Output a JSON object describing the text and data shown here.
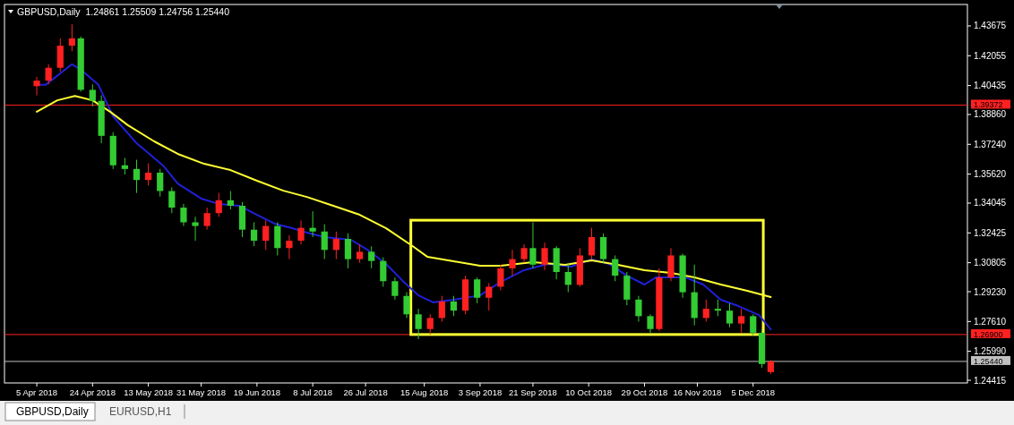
{
  "chart_data": {
    "type": "candlestick",
    "title": "GBPUSD,Daily  1.24861 1.25509 1.24756 1.25440",
    "annotations": [
      "GBPUSD,Daily",
      "EURUSD,H1"
    ],
    "xlim": [
      "2018-03-25",
      "2019-02-16"
    ],
    "xticks": [
      {
        "value": "2018-04-05",
        "label": "5 Apr 2018"
      },
      {
        "value": "2018-04-24",
        "label": "24 Apr 2018"
      },
      {
        "value": "2018-05-13",
        "label": "13 May 2018"
      },
      {
        "value": "2018-05-31",
        "label": "31 May 2018"
      },
      {
        "value": "2018-06-19",
        "label": "19 Jun 2018"
      },
      {
        "value": "2018-07-08",
        "label": "8 Jul 2018"
      },
      {
        "value": "2018-07-26",
        "label": "26 Jul 2018"
      },
      {
        "value": "2018-08-15",
        "label": "15 Aug 2018"
      },
      {
        "value": "2018-09-03",
        "label": "3 Sep 2018"
      },
      {
        "value": "2018-09-21",
        "label": "21 Sep 2018"
      },
      {
        "value": "2018-10-10",
        "label": "10 Oct 2018"
      },
      {
        "value": "2018-10-29",
        "label": "29 Oct 2018"
      },
      {
        "value": "2018-11-16",
        "label": "16 Nov 2018"
      },
      {
        "value": "2018-12-05",
        "label": "5 Dec 2018"
      }
    ],
    "ylim": [
      1.2427,
      1.4484
    ],
    "yticks": [
      1.43675,
      1.42055,
      1.40435,
      {
        "value": 1.3886,
        "label": "1.38860"
      },
      {
        "value": 1.3724,
        "label": "1.37240"
      },
      {
        "value": 1.3562,
        "label": "1.35620"
      },
      1.34045,
      1.32425,
      1.30805,
      {
        "value": 1.2923,
        "label": "1.29230"
      },
      {
        "value": 1.2761,
        "label": "1.27610"
      },
      {
        "value": 1.2599,
        "label": "1.25990"
      },
      1.24415
    ],
    "x": [
      "2018-04-05",
      "2018-04-09",
      "2018-04-13",
      "2018-04-17",
      "2018-04-20",
      "2018-04-24",
      "2018-04-27",
      "2018-05-01",
      "2018-05-05",
      "2018-05-09",
      "2018-05-13",
      "2018-05-17",
      "2018-05-21",
      "2018-05-25",
      "2018-05-29",
      "2018-06-02",
      "2018-06-06",
      "2018-06-10",
      "2018-06-14",
      "2018-06-18",
      "2018-06-22",
      "2018-06-26",
      "2018-06-30",
      "2018-07-04",
      "2018-07-08",
      "2018-07-12",
      "2018-07-16",
      "2018-07-20",
      "2018-07-24",
      "2018-07-28",
      "2018-08-01",
      "2018-08-05",
      "2018-08-09",
      "2018-08-13",
      "2018-08-17",
      "2018-08-21",
      "2018-08-25",
      "2018-08-29",
      "2018-09-02",
      "2018-09-06",
      "2018-09-10",
      "2018-09-14",
      "2018-09-18",
      "2018-09-21",
      "2018-09-25",
      "2018-09-29",
      "2018-10-03",
      "2018-10-07",
      "2018-10-11",
      "2018-10-15",
      "2018-10-19",
      "2018-10-23",
      "2018-10-27",
      "2018-10-31",
      "2018-11-03",
      "2018-11-07",
      "2018-11-11",
      "2018-11-15",
      "2018-11-19",
      "2018-11-23",
      "2018-11-27",
      "2018-12-01",
      "2018-12-05",
      "2018-12-08",
      "2018-12-11"
    ],
    "ohlc": [
      [
        1.404,
        1.409,
        1.399,
        1.407
      ],
      [
        1.407,
        1.416,
        1.405,
        1.414
      ],
      [
        1.414,
        1.43,
        1.412,
        1.426
      ],
      [
        1.426,
        1.4376,
        1.423,
        1.43
      ],
      [
        1.43,
        1.431,
        1.401,
        1.402
      ],
      [
        1.402,
        1.405,
        1.393,
        1.396
      ],
      [
        1.396,
        1.399,
        1.373,
        1.377
      ],
      [
        1.377,
        1.379,
        1.359,
        1.361
      ],
      [
        1.361,
        1.365,
        1.356,
        1.359
      ],
      [
        1.359,
        1.364,
        1.346,
        1.353
      ],
      [
        1.353,
        1.362,
        1.35,
        1.357
      ],
      [
        1.357,
        1.359,
        1.344,
        1.347
      ],
      [
        1.347,
        1.349,
        1.335,
        1.338
      ],
      [
        1.338,
        1.34,
        1.328,
        1.33
      ],
      [
        1.33,
        1.333,
        1.32,
        1.328
      ],
      [
        1.328,
        1.338,
        1.326,
        1.335
      ],
      [
        1.335,
        1.346,
        1.333,
        1.342
      ],
      [
        1.342,
        1.347,
        1.337,
        1.339
      ],
      [
        1.339,
        1.341,
        1.322,
        1.326
      ],
      [
        1.326,
        1.33,
        1.317,
        1.32
      ],
      [
        1.32,
        1.331,
        1.315,
        1.328
      ],
      [
        1.328,
        1.33,
        1.312,
        1.316
      ],
      [
        1.316,
        1.323,
        1.31,
        1.32
      ],
      [
        1.32,
        1.331,
        1.318,
        1.327
      ],
      [
        1.327,
        1.336,
        1.322,
        1.325
      ],
      [
        1.325,
        1.329,
        1.31,
        1.315
      ],
      [
        1.315,
        1.325,
        1.31,
        1.321
      ],
      [
        1.321,
        1.324,
        1.305,
        1.31
      ],
      [
        1.31,
        1.318,
        1.308,
        1.314
      ],
      [
        1.314,
        1.317,
        1.305,
        1.309
      ],
      [
        1.309,
        1.311,
        1.295,
        1.298
      ],
      [
        1.298,
        1.3,
        1.288,
        1.29
      ],
      [
        1.29,
        1.292,
        1.278,
        1.28
      ],
      [
        1.28,
        1.283,
        1.2665,
        1.272
      ],
      [
        1.272,
        1.28,
        1.269,
        1.278
      ],
      [
        1.278,
        1.29,
        1.276,
        1.287
      ],
      [
        1.287,
        1.29,
        1.279,
        1.282
      ],
      [
        1.282,
        1.301,
        1.28,
        1.299
      ],
      [
        1.299,
        1.3,
        1.286,
        1.289
      ],
      [
        1.289,
        1.297,
        1.282,
        1.295
      ],
      [
        1.295,
        1.307,
        1.293,
        1.305
      ],
      [
        1.305,
        1.315,
        1.301,
        1.31
      ],
      [
        1.31,
        1.318,
        1.308,
        1.316
      ],
      [
        1.316,
        1.33,
        1.305,
        1.307
      ],
      [
        1.307,
        1.319,
        1.304,
        1.316
      ],
      [
        1.316,
        1.317,
        1.299,
        1.303
      ],
      [
        1.303,
        1.308,
        1.292,
        1.296
      ],
      [
        1.296,
        1.316,
        1.295,
        1.312
      ],
      [
        1.312,
        1.327,
        1.31,
        1.322
      ],
      [
        1.322,
        1.324,
        1.308,
        1.31
      ],
      [
        1.31,
        1.312,
        1.298,
        1.301
      ],
      [
        1.301,
        1.303,
        1.285,
        1.288
      ],
      [
        1.288,
        1.29,
        1.276,
        1.279
      ],
      [
        1.279,
        1.28,
        1.2695,
        1.272
      ],
      [
        1.272,
        1.305,
        1.271,
        1.3
      ],
      [
        1.3,
        1.316,
        1.298,
        1.312
      ],
      [
        1.312,
        1.313,
        1.289,
        1.292
      ],
      [
        1.292,
        1.307,
        1.274,
        1.278
      ],
      [
        1.278,
        1.288,
        1.276,
        1.283
      ],
      [
        1.283,
        1.288,
        1.279,
        1.282
      ],
      [
        1.282,
        1.286,
        1.273,
        1.275
      ],
      [
        1.275,
        1.283,
        1.27,
        1.279
      ],
      [
        1.279,
        1.28,
        1.2685,
        1.27
      ],
      [
        1.27,
        1.272,
        1.251,
        1.253
      ],
      [
        1.24861,
        1.25509,
        1.24756,
        1.2544
      ]
    ],
    "colors": [
      "#ff2020",
      "#ff2020",
      "#ff2020",
      "#ff2020",
      "#33cc33",
      "#33cc33",
      "#33cc33",
      "#33cc33",
      "#33cc33",
      "#33cc33",
      "#ff2020",
      "#33cc33",
      "#33cc33",
      "#33cc33",
      "#33cc33",
      "#ff2020",
      "#ff2020",
      "#33cc33",
      "#33cc33",
      "#33cc33",
      "#ff2020",
      "#33cc33",
      "#ff2020",
      "#ff2020",
      "#33cc33",
      "#33cc33",
      "#ff2020",
      "#33cc33",
      "#ff2020",
      "#33cc33",
      "#33cc33",
      "#33cc33",
      "#33cc33",
      "#33cc33",
      "#ff2020",
      "#ff2020",
      "#33cc33",
      "#ff2020",
      "#33cc33",
      "#ff2020",
      "#ff2020",
      "#ff2020",
      "#ff2020",
      "#33cc33",
      "#ff2020",
      "#33cc33",
      "#33cc33",
      "#ff2020",
      "#ff2020",
      "#33cc33",
      "#33cc33",
      "#33cc33",
      "#33cc33",
      "#33cc33",
      "#ff2020",
      "#ff2020",
      "#33cc33",
      "#33cc33",
      "#ff2020",
      "#33cc33",
      "#33cc33",
      "#ff2020",
      "#33cc33",
      "#33cc33",
      "#ff2020"
    ],
    "series": [
      {
        "type": "line",
        "color": "#2020d8",
        "x": [
          "2018-04-05",
          "2018-04-08",
          "2018-04-17",
          "2018-04-20",
          "2018-04-26",
          "2018-05-01",
          "2018-05-09",
          "2018-05-18",
          "2018-05-23",
          "2018-05-31",
          "2018-06-06",
          "2018-06-13",
          "2018-06-19",
          "2018-06-25",
          "2018-07-01",
          "2018-07-06",
          "2018-07-12",
          "2018-07-21",
          "2018-07-27",
          "2018-08-02",
          "2018-08-08",
          "2018-08-13",
          "2018-08-18",
          "2018-08-25",
          "2018-09-03",
          "2018-09-10",
          "2018-09-18",
          "2018-09-26",
          "2018-10-04",
          "2018-10-11",
          "2018-10-17",
          "2018-10-23",
          "2018-10-29",
          "2018-11-02",
          "2018-11-12",
          "2018-11-18",
          "2018-11-24",
          "2018-11-30",
          "2018-12-07",
          "2018-12-11"
        ],
        "values": [
          1.4047,
          1.4047,
          1.4159,
          1.413,
          1.4047,
          1.3876,
          1.373,
          1.3609,
          1.3511,
          1.3429,
          1.34,
          1.339,
          1.3341,
          1.3293,
          1.3268,
          1.3244,
          1.322,
          1.3205,
          1.3147,
          1.3074,
          1.2976,
          1.2903,
          1.2865,
          1.2879,
          1.2903,
          1.2976,
          1.304,
          1.3074,
          1.3059,
          1.3098,
          1.3074,
          1.301,
          1.2962,
          1.3001,
          1.3001,
          1.2962,
          1.2879,
          1.2845,
          1.2796,
          1.2718
        ]
      },
      {
        "type": "line",
        "color": "#ffff33",
        "x": [
          "2018-04-05",
          "2018-04-12",
          "2018-04-18",
          "2018-04-24",
          "2018-04-30",
          "2018-05-06",
          "2018-05-15",
          "2018-05-23",
          "2018-06-01",
          "2018-06-10",
          "2018-06-19",
          "2018-06-28",
          "2018-07-06",
          "2018-07-15",
          "2018-07-24",
          "2018-08-02",
          "2018-08-11",
          "2018-08-16",
          "2018-08-25",
          "2018-09-03",
          "2018-09-10",
          "2018-09-21",
          "2018-10-02",
          "2018-10-11",
          "2018-10-20",
          "2018-10-29",
          "2018-11-07",
          "2018-11-15",
          "2018-11-24",
          "2018-12-03",
          "2018-12-11"
        ],
        "values": [
          1.3901,
          1.3963,
          1.3987,
          1.3963,
          1.3901,
          1.3828,
          1.374,
          1.3672,
          1.3618,
          1.3584,
          1.3526,
          1.3472,
          1.3438,
          1.339,
          1.3341,
          1.3268,
          1.3171,
          1.3113,
          1.3088,
          1.3064,
          1.3064,
          1.3083,
          1.3069,
          1.3093,
          1.3069,
          1.304,
          1.3025,
          1.3001,
          1.2962,
          1.2928,
          1.2894
        ]
      }
    ],
    "ref_lines": [
      {
        "axis": "y",
        "value": 1.39372,
        "label": "1.39372",
        "color": "#ff2020"
      },
      {
        "axis": "y",
        "value": 1.269,
        "label": "1.26900",
        "color": "#ff2020"
      },
      {
        "axis": "y",
        "value": 1.2544,
        "label": "1.25440",
        "color": "#c0c0c0"
      }
    ]
  }
}
